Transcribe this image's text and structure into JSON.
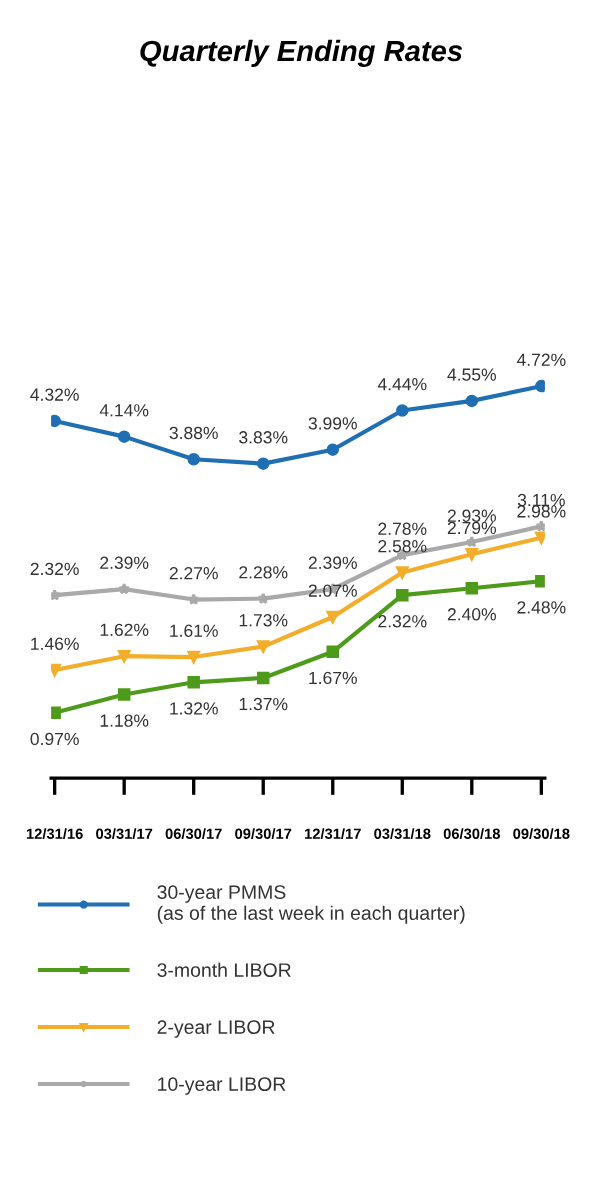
{
  "chart_data": {
    "type": "line",
    "title": "Quarterly Ending Rates",
    "categories": [
      "12/31/16",
      "03/31/17",
      "06/30/17",
      "09/30/17",
      "12/31/17",
      "03/31/18",
      "06/30/18",
      "09/30/18"
    ],
    "series": [
      {
        "name": "30-year PMMS\n(as of the last week in each quarter)",
        "color": "#1f6fb2",
        "marker": "circle",
        "values": [
          4.32,
          4.14,
          3.88,
          3.83,
          3.99,
          4.44,
          4.55,
          4.72
        ],
        "value_labels": [
          "4.32%",
          "4.14%",
          "3.88%",
          "3.83%",
          "3.99%",
          "4.44%",
          "4.55%",
          "4.72%"
        ]
      },
      {
        "name": "3-month LIBOR",
        "color": "#4e9a1a",
        "marker": "square",
        "values": [
          0.97,
          1.18,
          1.32,
          1.37,
          1.67,
          2.32,
          2.4,
          2.48
        ],
        "value_labels": [
          "0.97%",
          "1.18%",
          "1.32%",
          "1.37%",
          "1.67%",
          "2.32%",
          "2.40%",
          "2.48%"
        ]
      },
      {
        "name": "2-year LIBOR",
        "color": "#f2ad2b",
        "marker": "triangle",
        "values": [
          1.46,
          1.62,
          1.61,
          1.73,
          2.07,
          2.58,
          2.79,
          2.98
        ],
        "value_labels": [
          "1.46%",
          "1.62%",
          "1.61%",
          "1.73%",
          "2.07%",
          "2.58%",
          "2.79%",
          "2.98%"
        ]
      },
      {
        "name": "10-year LIBOR",
        "color": "#a9a9a9",
        "marker": "star",
        "values": [
          2.32,
          2.39,
          2.27,
          2.28,
          2.39,
          2.78,
          2.93,
          3.11
        ],
        "value_labels": [
          "2.32%",
          "2.39%",
          "2.27%",
          "2.28%",
          "2.39%",
          "2.78%",
          "2.93%",
          "3.11%"
        ]
      }
    ],
    "legend": "bottom",
    "grid": false,
    "line_style": "solid",
    "tick_labels": "x"
  }
}
